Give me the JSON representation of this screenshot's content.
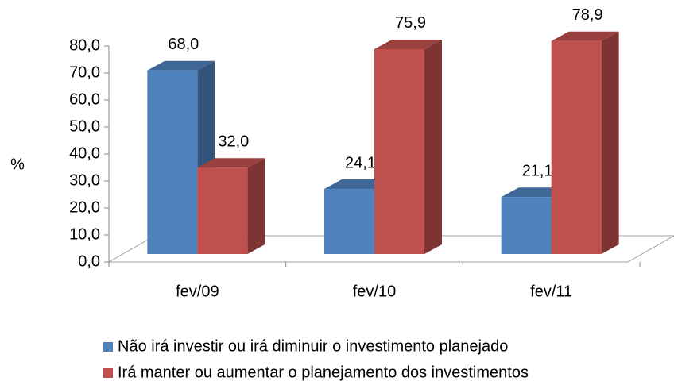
{
  "chart_data": {
    "type": "bar3d",
    "ylabel": "%",
    "categories": [
      "fev/09",
      "fev/10",
      "fev/11"
    ],
    "series": [
      {
        "name": "Não irá investir ou irá diminuir o investimento planejado",
        "color": "#4f81bd",
        "values": [
          68.0,
          24.1,
          21.1
        ],
        "value_labels": [
          "68,0",
          "24,1",
          "21,1"
        ]
      },
      {
        "name": "Irá manter ou aumentar o planejamento dos investimentos",
        "color": "#c0504d",
        "values": [
          32.0,
          75.9,
          78.9
        ],
        "value_labels": [
          "32,0",
          "75,9",
          "78,9"
        ]
      }
    ],
    "ylim": [
      0,
      80
    ],
    "yticks": [
      {
        "value": 0,
        "label": "0,0"
      },
      {
        "value": 10,
        "label": "10,0"
      },
      {
        "value": 20,
        "label": "20,0"
      },
      {
        "value": 30,
        "label": "30,0"
      },
      {
        "value": 40,
        "label": "40,0"
      },
      {
        "value": 50,
        "label": "50,0"
      },
      {
        "value": 60,
        "label": "60,0"
      },
      {
        "value": 70,
        "label": "70,0"
      },
      {
        "value": 80,
        "label": "80,0"
      }
    ],
    "legend": "bottom"
  }
}
